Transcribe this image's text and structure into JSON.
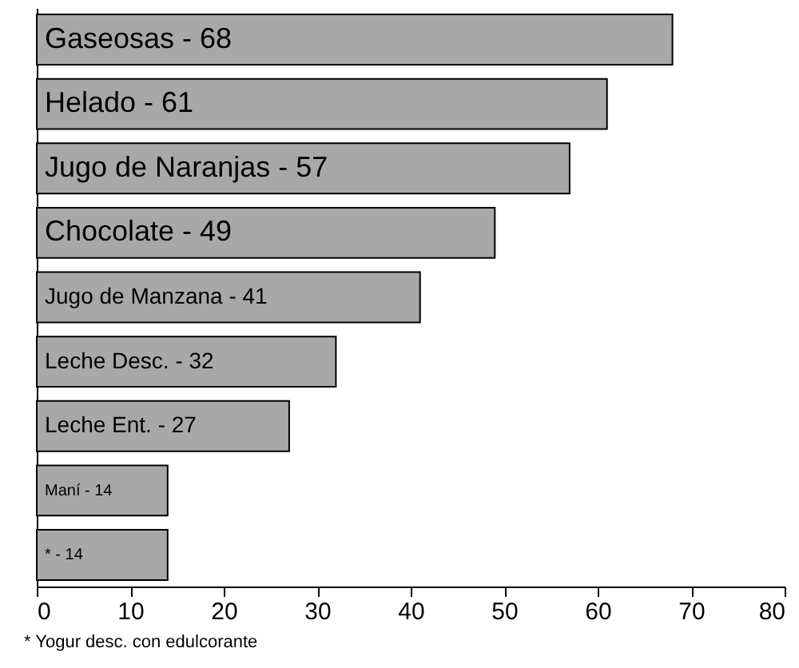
{
  "chart_data": {
    "type": "bar",
    "orientation": "horizontal",
    "categories": [
      "Gaseosas - 68",
      "Helado - 61",
      "Jugo de Naranjas - 57",
      "Chocolate - 49",
      "Jugo de Manzana - 41",
      "Leche Desc. - 32",
      "Leche Ent. - 27",
      "Maní - 14",
      "* - 14"
    ],
    "values": [
      68,
      61,
      57,
      49,
      41,
      32,
      27,
      14,
      14
    ],
    "color": "#a8a8a8",
    "xlim": [
      0,
      80
    ],
    "xticks": [
      0,
      10,
      20,
      30,
      40,
      50,
      60,
      70,
      80
    ],
    "tick_labels": "x",
    "grid": false,
    "annotations": [
      "* Yogur desc. con edulcorante"
    ]
  }
}
